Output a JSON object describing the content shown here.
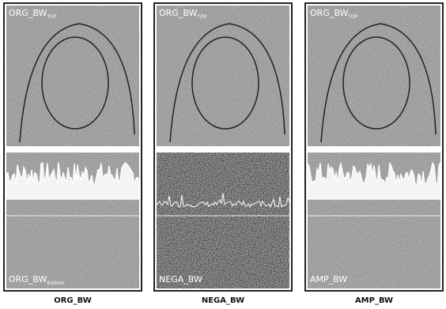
{
  "panels": [
    {
      "top_label": "ORG_BW",
      "top_sub": "TOP",
      "bottom_label": "ORG_BW",
      "bottom_sub": "Bottom",
      "caption": "ORG_BW"
    },
    {
      "top_label": "ORG_BW",
      "top_sub": "TOP",
      "bottom_label": "NEGA_BW",
      "caption": "NEGA_BW"
    },
    {
      "top_label": "ORG_BW",
      "top_sub": "TOP",
      "bottom_label": "AMP_BW",
      "caption": "AMP_BW"
    }
  ]
}
